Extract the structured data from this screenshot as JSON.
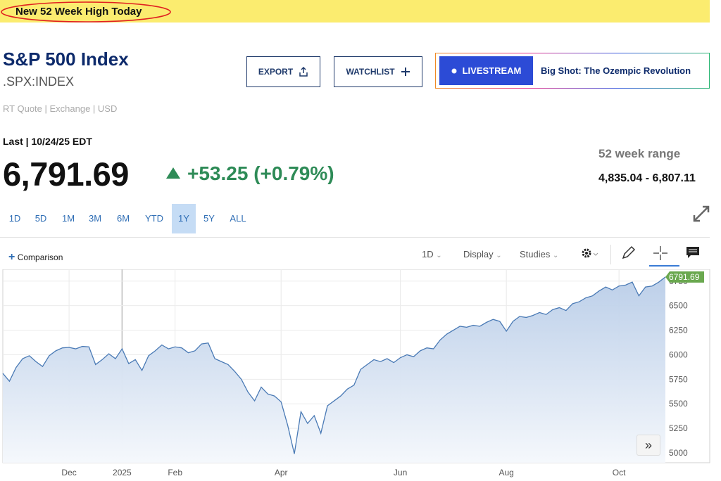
{
  "banner": "New 52 Week High Today",
  "header": {
    "title": "S&P 500 Index",
    "symbol": ".SPX:INDEX",
    "quote_info": "RT Quote | Exchange | USD"
  },
  "buttons": {
    "export": "EXPORT",
    "watchlist": "WATCHLIST",
    "livestream": "LIVESTREAM",
    "promo": "Big Shot: The Ozempic Revolution"
  },
  "quote": {
    "last": "Last | 10/24/25 EDT",
    "price": "6,791.69",
    "change": "+53.25 (+0.79%)",
    "range_label": "52 week range",
    "range": "4,835.04 - 6,807.11"
  },
  "time_ranges": [
    "1D",
    "5D",
    "1M",
    "3M",
    "6M",
    "YTD",
    "1Y",
    "5Y",
    "ALL"
  ],
  "selected_range": 6,
  "toolbar": {
    "comparison": "Comparison",
    "interval": "1D",
    "display": "Display",
    "studies": "Studies"
  },
  "chart_data": {
    "type": "area",
    "line_color": "#4a7ab5",
    "fill_color": "#b9cde8",
    "last_tag_color": "#6aa84f",
    "grid": true,
    "categories": [
      null,
      null,
      null,
      null,
      null,
      null,
      null,
      null,
      null,
      null,
      "Dec",
      null,
      null,
      null,
      null,
      null,
      null,
      null,
      "2025",
      null,
      null,
      null,
      null,
      null,
      null,
      null,
      "Feb",
      null,
      null,
      null,
      null,
      null,
      null,
      null,
      null,
      null,
      null,
      null,
      null,
      null,
      null,
      null,
      "Apr",
      null,
      null,
      null,
      null,
      null,
      null,
      null,
      null,
      null,
      null,
      null,
      null,
      null,
      null,
      null,
      null,
      null,
      "Jun",
      null,
      null,
      null,
      null,
      null,
      null,
      null,
      null,
      null,
      null,
      null,
      null,
      null,
      null,
      null,
      "Aug",
      null,
      null,
      null,
      null,
      null,
      null,
      null,
      null,
      null,
      null,
      null,
      null,
      null,
      null,
      null,
      null,
      "Oct",
      null,
      null,
      null,
      null,
      null,
      null,
      null
    ],
    "values": [
      5810,
      5730,
      5870,
      5960,
      5990,
      5930,
      5880,
      5990,
      6040,
      6070,
      6075,
      6060,
      6085,
      6080,
      5900,
      5950,
      6010,
      5960,
      6060,
      5910,
      5950,
      5840,
      5990,
      6040,
      6100,
      6060,
      6080,
      6070,
      6020,
      6040,
      6110,
      6120,
      5960,
      5930,
      5900,
      5830,
      5750,
      5620,
      5530,
      5670,
      5600,
      5580,
      5520,
      5280,
      4990,
      5420,
      5300,
      5380,
      5200,
      5480,
      5530,
      5580,
      5650,
      5690,
      5850,
      5900,
      5950,
      5930,
      5960,
      5920,
      5970,
      6000,
      5980,
      6040,
      6070,
      6060,
      6150,
      6210,
      6250,
      6290,
      6280,
      6300,
      6290,
      6330,
      6360,
      6340,
      6240,
      6340,
      6390,
      6380,
      6400,
      6430,
      6410,
      6460,
      6480,
      6450,
      6520,
      6540,
      6580,
      6600,
      6650,
      6690,
      6660,
      6700,
      6710,
      6740,
      6600,
      6690,
      6700,
      6740,
      6791.69
    ],
    "ylim": [
      4900,
      6870
    ],
    "yticks": [
      5000,
      5250,
      5500,
      5750,
      6000,
      6250,
      6500,
      6750
    ]
  }
}
